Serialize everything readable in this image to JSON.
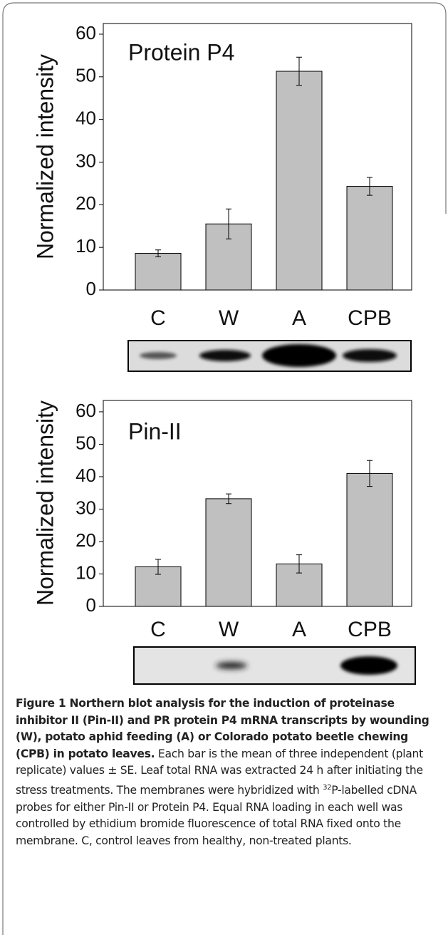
{
  "chart_data": [
    {
      "type": "bar",
      "title": "Protein P4",
      "ylabel": "Normalized intensity",
      "categories": [
        "C",
        "W",
        "A",
        "CPB"
      ],
      "values": [
        8.6,
        15.5,
        51.3,
        24.3
      ],
      "errors": [
        0.8,
        3.5,
        3.3,
        2.1
      ],
      "color": "#c0c0c0",
      "ylim": [
        0,
        62.5
      ],
      "yticks": [
        0,
        10,
        20,
        30,
        40,
        50,
        60
      ]
    },
    {
      "type": "bar",
      "title": "Pin-II",
      "ylabel": "Normalized intensity",
      "categories": [
        "C",
        "W",
        "A",
        "CPB"
      ],
      "values": [
        12.2,
        33.2,
        13.1,
        41.0
      ],
      "errors": [
        2.3,
        1.5,
        2.8,
        4.0
      ],
      "color": "#c0c0c0",
      "ylim": [
        0,
        63.5
      ],
      "yticks": [
        0,
        10,
        20,
        30,
        40,
        50,
        60
      ]
    }
  ],
  "caption": {
    "bold": "Figure 1 Northern blot analysis for the induction of proteinase inhibitor II (Pin-II) and PR protein P4 mRNA transcripts by wounding (W), potato aphid feeding (A) or Colorado potato beetle chewing (CPB) in potato leaves.",
    "text_before_sup": " Each bar is the mean of three independent (plant replicate) values ± SE. Leaf total RNA was extracted 24 h after initiating the stress treatments. The membranes were hybridized with ",
    "sup": "32",
    "text_after_sup": "P-labelled cDNA probes for either Pin-II or Protein P4. Equal RNA loading in each well was controlled by ethidium bromide fluorescence of total RNA fixed onto the membrane. C, control leaves from healthy, non-treated plants."
  }
}
